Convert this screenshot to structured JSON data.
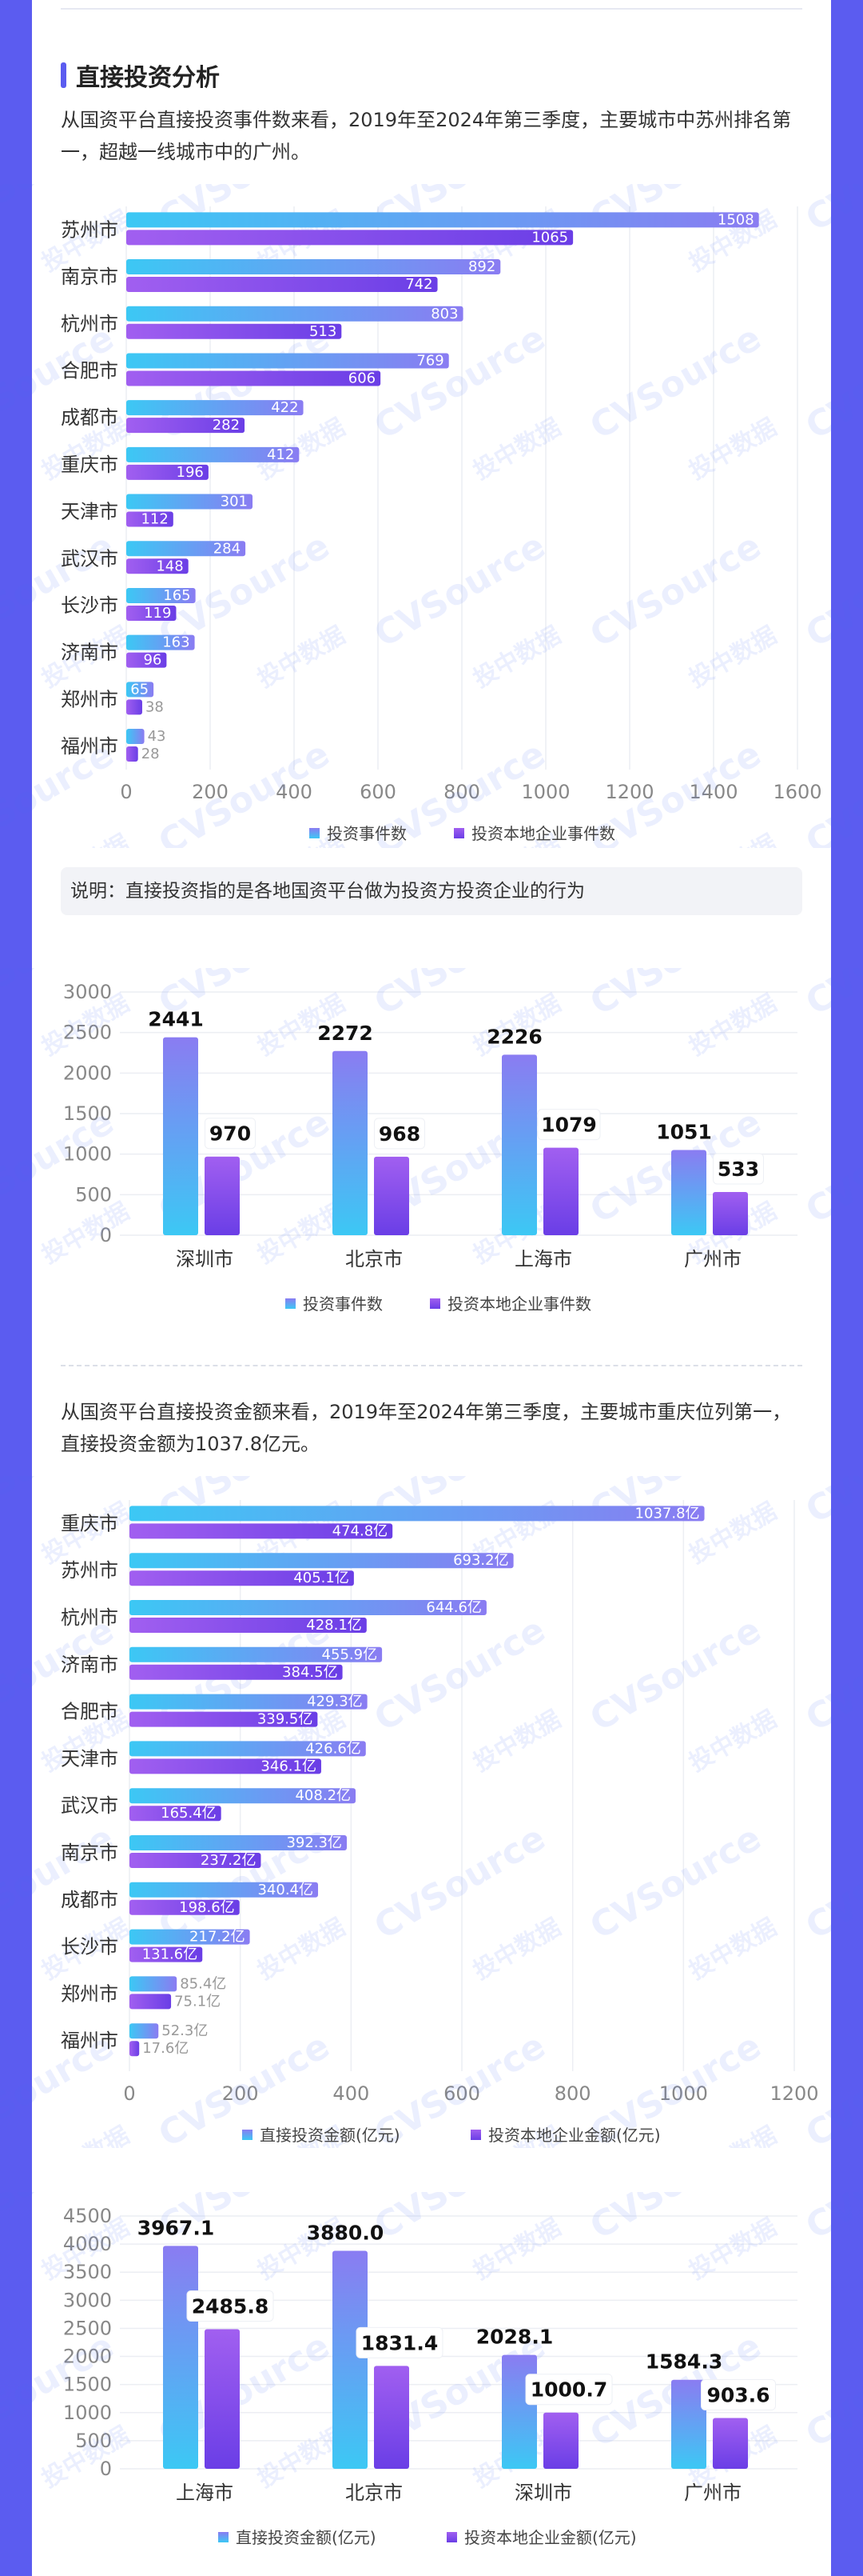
{
  "section_title": "直接投资分析",
  "para1": "从国资平台直接投资事件数来看，2019年至2024年第三季度，主要城市中苏州排名第一，超越一线城市中的广州。",
  "note": "说明：直接投资指的是各地国资平台做为投资方投资企业的行为",
  "para2": "从国资平台直接投资金额来看，2019年至2024年第三季度，主要城市重庆位列第一，直接投资金额为1037.8亿元。",
  "watermark": {
    "text1": "CVSource",
    "text2": "投中数据"
  },
  "colors": {
    "accent": "#5b5cf0",
    "series1_start": "#3cc8f4",
    "series1_end": "#8a7cf2",
    "series2_start": "#a15ff0",
    "series2_end": "#6a3ee6"
  },
  "chart_data": [
    {
      "type": "bar",
      "orientation": "horizontal",
      "categories": [
        "苏州市",
        "南京市",
        "杭州市",
        "合肥市",
        "成都市",
        "重庆市",
        "天津市",
        "武汉市",
        "长沙市",
        "济南市",
        "郑州市",
        "福州市"
      ],
      "series": [
        {
          "name": "投资事件数",
          "values": [
            1508,
            892,
            803,
            769,
            422,
            412,
            301,
            284,
            165,
            163,
            65,
            43
          ]
        },
        {
          "name": "投资本地企业事件数",
          "values": [
            1065,
            742,
            513,
            606,
            282,
            196,
            112,
            148,
            119,
            96,
            38,
            28
          ]
        }
      ],
      "xlim": [
        0,
        1600
      ],
      "xticks": [
        "0",
        "200",
        "400",
        "600",
        "800",
        "1000",
        "1200",
        "1400",
        "1600"
      ],
      "grid": true,
      "legend": "bottom"
    },
    {
      "type": "bar",
      "orientation": "vertical",
      "categories": [
        "深圳市",
        "北京市",
        "上海市",
        "广州市"
      ],
      "series": [
        {
          "name": "投资事件数",
          "values": [
            2441,
            2272,
            2226,
            1051
          ]
        },
        {
          "name": "投资本地企业事件数",
          "values": [
            970,
            968,
            1079,
            533
          ]
        }
      ],
      "labels": [
        [
          "2441",
          "2272",
          "2226",
          "1051"
        ],
        [
          "970",
          "968",
          "1079",
          "533"
        ]
      ],
      "ylim": [
        0,
        3000
      ],
      "yticks": [
        "0",
        "500",
        "1000",
        "1500",
        "2000",
        "2500",
        "3000"
      ],
      "grid": true,
      "legend": "bottom"
    },
    {
      "type": "bar",
      "orientation": "horizontal",
      "categories": [
        "重庆市",
        "苏州市",
        "杭州市",
        "济南市",
        "合肥市",
        "天津市",
        "武汉市",
        "南京市",
        "成都市",
        "长沙市",
        "郑州市",
        "福州市"
      ],
      "series": [
        {
          "name": "直接投资金额(亿元)",
          "values": [
            1037.8,
            693.2,
            644.6,
            455.9,
            429.3,
            426.6,
            408.2,
            392.3,
            340.4,
            217.2,
            85.4,
            52.3
          ],
          "labels": [
            "1037.8亿",
            "693.2亿",
            "644.6亿",
            "455.9亿",
            "429.3亿",
            "426.6亿",
            "408.2亿",
            "392.3亿",
            "340.4亿",
            "217.2亿",
            "85.4亿",
            "52.3亿"
          ]
        },
        {
          "name": "投资本地企业金额(亿元)",
          "values": [
            474.8,
            405.1,
            428.1,
            384.5,
            339.5,
            346.1,
            165.4,
            237.2,
            198.6,
            131.6,
            75.1,
            17.6
          ],
          "labels": [
            "474.8亿",
            "405.1亿",
            "428.1亿",
            "384.5亿",
            "339.5亿",
            "346.1亿",
            "165.4亿",
            "237.2亿",
            "198.6亿",
            "131.6亿",
            "75.1亿",
            "17.6亿"
          ]
        }
      ],
      "xlim": [
        0,
        1200
      ],
      "xticks": [
        "0",
        "200",
        "400",
        "600",
        "800",
        "1000",
        "1200"
      ],
      "grid": true,
      "legend": "bottom"
    },
    {
      "type": "bar",
      "orientation": "vertical",
      "categories": [
        "上海市",
        "北京市",
        "深圳市",
        "广州市"
      ],
      "series": [
        {
          "name": "直接投资金额(亿元)",
          "values": [
            3967.1,
            3880.0,
            2028.1,
            1584.3
          ]
        },
        {
          "name": "投资本地企业金额(亿元)",
          "values": [
            2485.8,
            1831.4,
            1000.7,
            903.6
          ]
        }
      ],
      "labels": [
        [
          "3967.1",
          "3880.0",
          "2028.1",
          "1584.3"
        ],
        [
          "2485.8",
          "1831.4",
          "1000.7",
          "903.6"
        ]
      ],
      "ylim": [
        0,
        4500
      ],
      "yticks": [
        "0",
        "500",
        "1000",
        "1500",
        "2000",
        "2500",
        "3000",
        "3500",
        "4000",
        "4500"
      ],
      "grid": true,
      "legend": "bottom"
    }
  ]
}
